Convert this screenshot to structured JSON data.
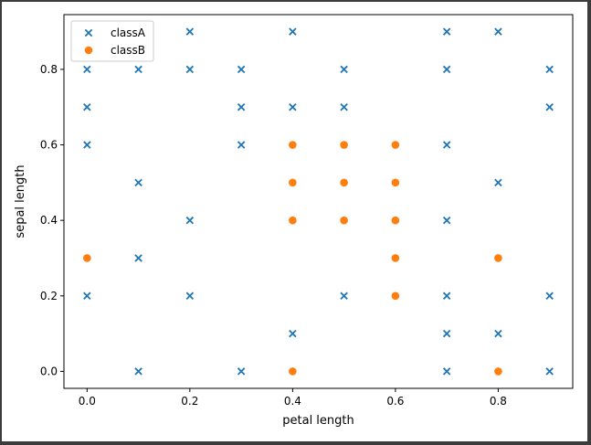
{
  "chart_data": {
    "type": "scatter",
    "xlabel": "petal length",
    "ylabel": "sepal length",
    "xlim": [
      -0.045,
      0.945
    ],
    "ylim": [
      -0.045,
      0.945
    ],
    "x_ticks": [
      0.0,
      0.2,
      0.4,
      0.6,
      0.8
    ],
    "x_tick_labels": [
      "0.0",
      "0.2",
      "0.4",
      "0.6",
      "0.8"
    ],
    "y_ticks": [
      0.0,
      0.2,
      0.4,
      0.6,
      0.8
    ],
    "y_tick_labels": [
      "0.0",
      "0.2",
      "0.4",
      "0.6",
      "0.8"
    ],
    "grid": false,
    "legend_position": "top-left",
    "series": [
      {
        "name": "classA",
        "marker": "x",
        "color": "#1f77b4",
        "points": [
          [
            0.0,
            0.8
          ],
          [
            0.0,
            0.7
          ],
          [
            0.0,
            0.6
          ],
          [
            0.0,
            0.2
          ],
          [
            0.1,
            0.8
          ],
          [
            0.1,
            0.5
          ],
          [
            0.1,
            0.3
          ],
          [
            0.1,
            0.0
          ],
          [
            0.2,
            0.9
          ],
          [
            0.2,
            0.8
          ],
          [
            0.2,
            0.4
          ],
          [
            0.2,
            0.2
          ],
          [
            0.3,
            0.8
          ],
          [
            0.3,
            0.7
          ],
          [
            0.3,
            0.6
          ],
          [
            0.3,
            0.0
          ],
          [
            0.4,
            0.9
          ],
          [
            0.4,
            0.7
          ],
          [
            0.4,
            0.1
          ],
          [
            0.5,
            0.8
          ],
          [
            0.5,
            0.7
          ],
          [
            0.5,
            0.2
          ],
          [
            0.7,
            0.9
          ],
          [
            0.7,
            0.8
          ],
          [
            0.7,
            0.6
          ],
          [
            0.7,
            0.4
          ],
          [
            0.7,
            0.2
          ],
          [
            0.7,
            0.1
          ],
          [
            0.7,
            0.0
          ],
          [
            0.8,
            0.9
          ],
          [
            0.8,
            0.5
          ],
          [
            0.8,
            0.1
          ],
          [
            0.9,
            0.8
          ],
          [
            0.9,
            0.7
          ],
          [
            0.9,
            0.2
          ],
          [
            0.9,
            0.0
          ]
        ]
      },
      {
        "name": "classB",
        "marker": "o",
        "color": "#ff7f0e",
        "points": [
          [
            0.0,
            0.3
          ],
          [
            0.4,
            0.6
          ],
          [
            0.4,
            0.5
          ],
          [
            0.4,
            0.4
          ],
          [
            0.4,
            0.0
          ],
          [
            0.5,
            0.6
          ],
          [
            0.5,
            0.5
          ],
          [
            0.5,
            0.4
          ],
          [
            0.6,
            0.6
          ],
          [
            0.6,
            0.5
          ],
          [
            0.6,
            0.4
          ],
          [
            0.6,
            0.3
          ],
          [
            0.6,
            0.2
          ],
          [
            0.8,
            0.3
          ],
          [
            0.8,
            0.0
          ]
        ]
      }
    ]
  }
}
